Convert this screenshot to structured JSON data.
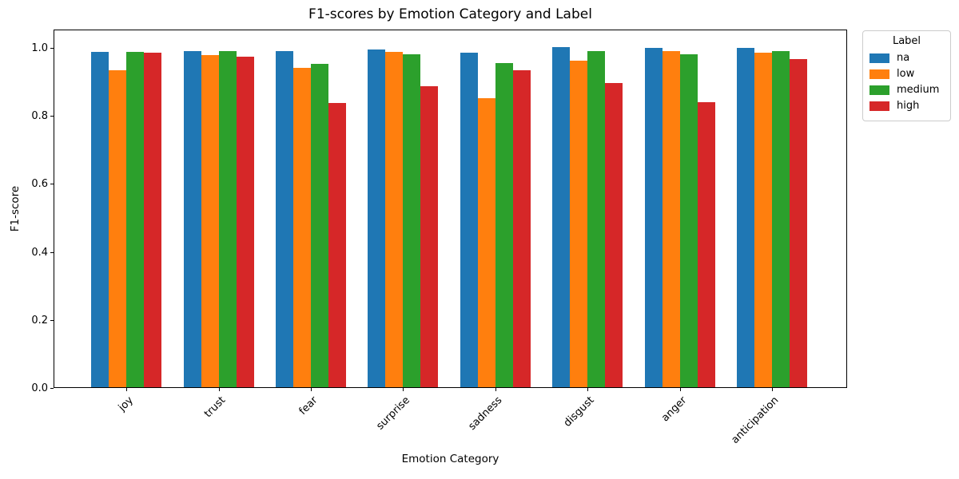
{
  "chart_data": {
    "type": "bar",
    "title": "F1-scores by Emotion Category and Label",
    "xlabel": "Emotion Category",
    "ylabel": "F1-score",
    "categories": [
      "joy",
      "trust",
      "fear",
      "surprise",
      "sadness",
      "disgust",
      "anger",
      "anticipation"
    ],
    "series": [
      {
        "name": "na",
        "color": "#1f77b4",
        "values": [
          0.986,
          0.988,
          0.988,
          0.994,
          0.983,
          0.999,
          0.997,
          0.997
        ]
      },
      {
        "name": "low",
        "color": "#ff7f0e",
        "values": [
          0.931,
          0.977,
          0.938,
          0.986,
          0.85,
          0.96,
          0.988,
          0.984
        ]
      },
      {
        "name": "medium",
        "color": "#2ca02c",
        "values": [
          0.986,
          0.989,
          0.95,
          0.979,
          0.952,
          0.988,
          0.98,
          0.989
        ]
      },
      {
        "name": "high",
        "color": "#d62728",
        "values": [
          0.984,
          0.973,
          0.836,
          0.885,
          0.933,
          0.894,
          0.838,
          0.964
        ]
      }
    ],
    "ylim": [
      0,
      1.05
    ],
    "yticks": [
      0.0,
      0.2,
      0.4,
      0.6,
      0.8,
      1.0
    ],
    "ytick_labels": [
      "0.0",
      "0.2",
      "0.4",
      "0.6",
      "0.8",
      "1.0"
    ],
    "grid": false,
    "legend": {
      "title": "Label",
      "entries": [
        "na",
        "low",
        "medium",
        "high"
      ],
      "position": "upper-right-outside"
    },
    "xtick_rotation": 45
  }
}
